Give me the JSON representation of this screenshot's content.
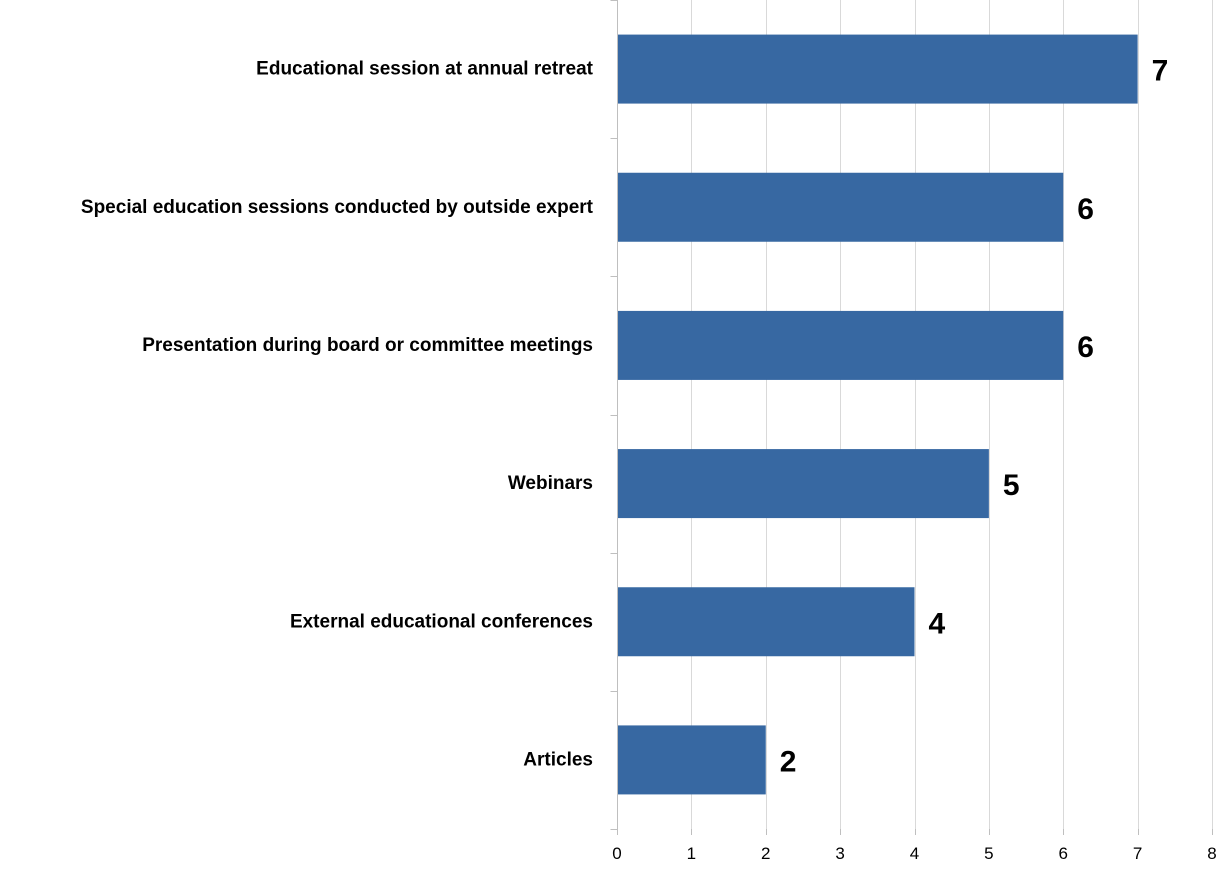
{
  "chart_data": {
    "type": "bar",
    "orientation": "horizontal",
    "title": "",
    "xlabel": "",
    "ylabel": "",
    "categories": [
      "Educational session at annual retreat",
      "Special education sessions conducted by outside expert",
      "Presentation during board or committee meetings",
      "Webinars",
      "External educational conferences",
      "Articles"
    ],
    "values": [
      7,
      6,
      6,
      5,
      4,
      2
    ],
    "xlim": [
      0,
      8
    ],
    "xticks": [
      0,
      1,
      2,
      3,
      4,
      5,
      6,
      7,
      8
    ],
    "grid": true,
    "legend": "none",
    "data_labels": true,
    "colors": {
      "bar": "#3768A2",
      "grid": "#D9D9D9",
      "axis": "#BFBFBF"
    }
  }
}
